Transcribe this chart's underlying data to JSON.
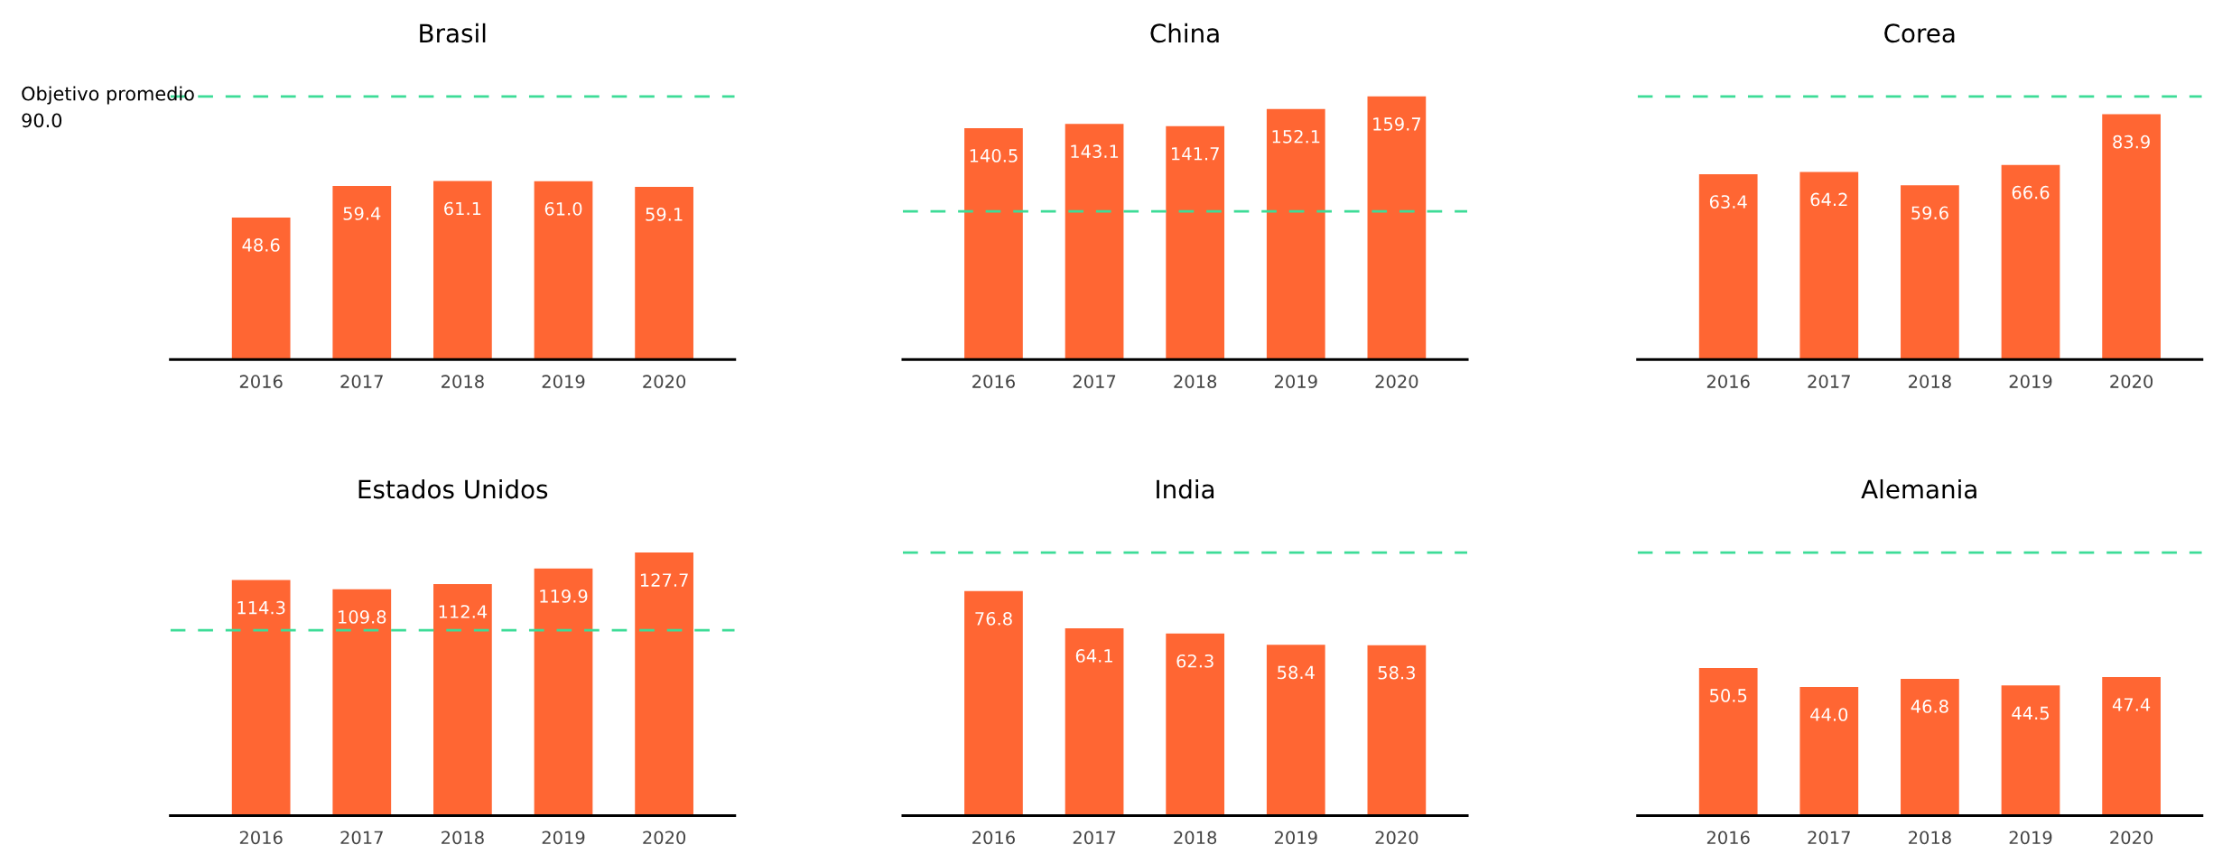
{
  "chart_data": [
    {
      "type": "bar",
      "title": "Brasil",
      "categories": [
        "2016",
        "2017",
        "2018",
        "2019",
        "2020"
      ],
      "values": [
        48.6,
        59.4,
        61.1,
        61.0,
        59.1
      ],
      "value_labels": [
        "48.6",
        "59.4",
        "61.1",
        "61.0",
        "59.1"
      ],
      "color": "#ff6633",
      "ref_lines": [
        {
          "axis": "y",
          "value": 90.0,
          "label": "Objetivo promedio\n90.0",
          "color": "#3ddc97",
          "line_style": "dashed"
        }
      ]
    },
    {
      "type": "bar",
      "title": "China",
      "categories": [
        "2016",
        "2017",
        "2018",
        "2019",
        "2020"
      ],
      "values": [
        140.5,
        143.1,
        141.7,
        152.1,
        159.7
      ],
      "color": "#ff6633",
      "data_labels": true,
      "ref_lines": [
        {
          "axis": "y",
          "value": 90.0,
          "color": "#3ddc97",
          "line_style": "dashed"
        }
      ]
    },
    {
      "type": "bar",
      "title": "Corea",
      "categories": [
        "2016",
        "2017",
        "2018",
        "2019",
        "2020"
      ],
      "values": [
        63.4,
        64.2,
        59.6,
        66.6,
        83.9
      ],
      "color": "#ff6633",
      "data_labels": true,
      "ref_lines": [
        {
          "axis": "y",
          "value": 90.0,
          "color": "#3ddc97",
          "line_style": "dashed"
        }
      ]
    },
    {
      "type": "bar",
      "title": "Estados Unidos",
      "categories": [
        "2016",
        "2017",
        "2018",
        "2019",
        "2020"
      ],
      "values": [
        114.3,
        109.8,
        112.4,
        119.9,
        127.7
      ],
      "color": "#ff6633",
      "data_labels": true,
      "ref_lines": [
        {
          "axis": "y",
          "value": 90.0,
          "color": "#3ddc97",
          "line_style": "dashed"
        }
      ]
    },
    {
      "type": "bar",
      "title": "India",
      "categories": [
        "2016",
        "2017",
        "2018",
        "2019",
        "2020"
      ],
      "values": [
        76.8,
        64.1,
        62.3,
        58.4,
        58.3
      ],
      "color": "#ff6633",
      "data_labels": true,
      "ref_lines": [
        {
          "axis": "y",
          "value": 90.0,
          "color": "#3ddc97",
          "line_style": "dashed"
        }
      ]
    },
    {
      "type": "bar",
      "title": "Alemania",
      "categories": [
        "2016",
        "2017",
        "2018",
        "2019",
        "2020"
      ],
      "values": [
        50.5,
        44.0,
        46.8,
        44.5,
        47.4
      ],
      "value_labels": [
        "50.5",
        "44.0",
        "46.8",
        "44.5",
        "47.4"
      ],
      "color": "#ff6633",
      "ref_lines": [
        {
          "axis": "y",
          "value": 90.0,
          "color": "#3ddc97",
          "line_style": "dashed"
        }
      ]
    }
  ]
}
